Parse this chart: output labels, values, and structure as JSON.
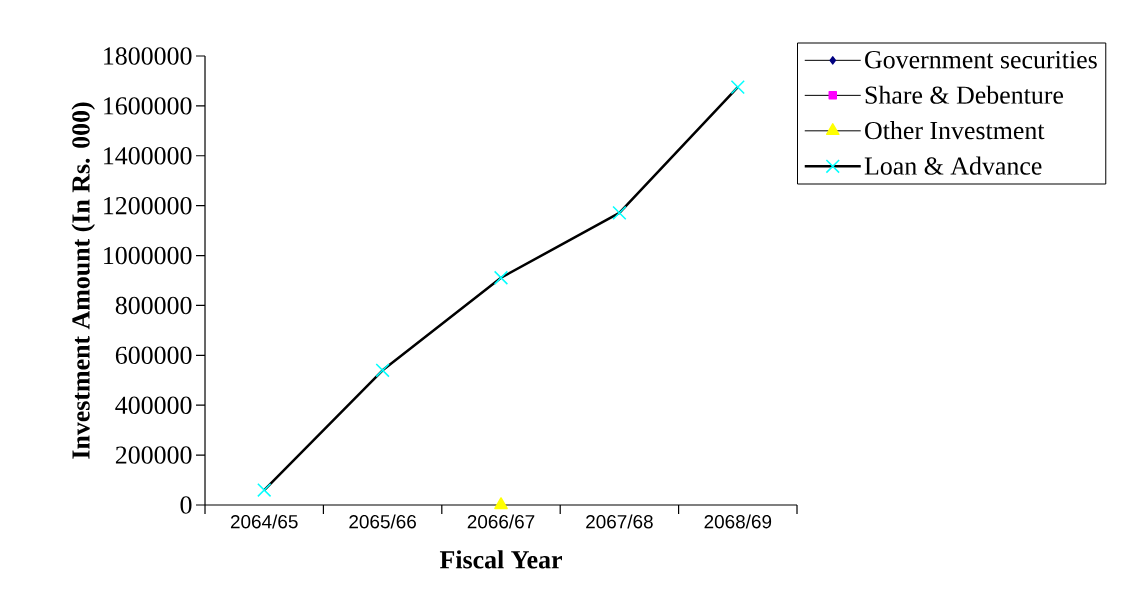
{
  "chart_data": {
    "type": "line",
    "xlabel": "Fiscal Year",
    "ylabel": "Investment Amount (In Rs. 000)",
    "categories": [
      "2064/65",
      "2065/66",
      "2066/67",
      "2067/68",
      "2068/69"
    ],
    "series": [
      {
        "name": "Government securities",
        "color": "#000080",
        "marker": "diamond",
        "values": [
          null,
          null,
          null,
          null,
          null
        ]
      },
      {
        "name": "Share & Debenture",
        "color": "#ff00ff",
        "marker": "square",
        "values": [
          null,
          null,
          null,
          null,
          null
        ]
      },
      {
        "name": "Other Investment",
        "color": "#ffff00",
        "marker": "triangle",
        "values": [
          null,
          null,
          0,
          null,
          null
        ]
      },
      {
        "name": "Loan & Advance",
        "color": "#00ffff",
        "marker": "cross",
        "values": [
          60000,
          540000,
          911000,
          1171000,
          1675000
        ]
      }
    ],
    "ylim": [
      0,
      1800000
    ],
    "yticks": [
      0,
      200000,
      400000,
      600000,
      800000,
      1000000,
      1200000,
      1400000,
      1600000,
      1800000
    ],
    "grid": false,
    "legend": "top right"
  }
}
